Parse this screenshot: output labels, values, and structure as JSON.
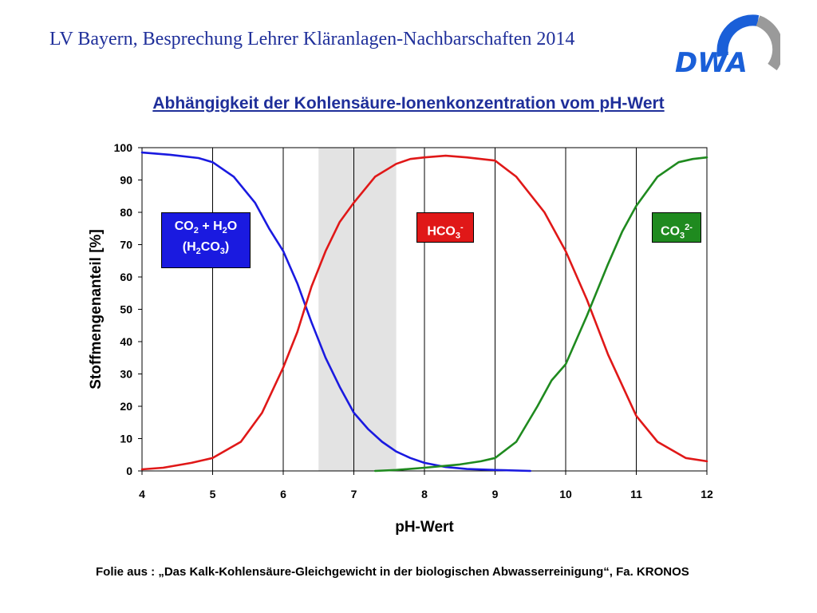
{
  "header": {
    "text": "LV Bayern, Besprechung Lehrer Kläranlagen-Nachbarschaften 2014"
  },
  "logo": {
    "text": "DWA"
  },
  "footer": {
    "text": "Folie aus : „Das Kalk-Kohlensäure-Gleichgewicht in der biologischen Abwasserreinigung“, Fa. KRONOS"
  },
  "colors": {
    "blue": "#1a1ae0",
    "red": "#e01818",
    "green": "#1f8a1f",
    "title": "#1f2f9a",
    "shade": "#e3e3e3"
  },
  "chart_data": {
    "type": "line",
    "title": "Abhängigkeit der Kohlensäure-Ionenkonzentration vom pH-Wert",
    "xlabel": "pH-Wert",
    "ylabel": "Stoffmengenanteil [%]",
    "xlim": [
      4,
      12
    ],
    "ylim": [
      0,
      100
    ],
    "xticks": [
      "4",
      "5",
      "6",
      "7",
      "8",
      "9",
      "10",
      "11",
      "12"
    ],
    "yticks": [
      "0",
      "10",
      "20",
      "30",
      "40",
      "50",
      "60",
      "70",
      "80",
      "90",
      "100"
    ],
    "grid": "vertical",
    "shaded_region": [
      6.5,
      7.6
    ],
    "series": [
      {
        "name": "CO2 + H2O (H2CO3)",
        "color": "#1a1ae0",
        "x": [
          4.0,
          4.4,
          4.8,
          5.0,
          5.3,
          5.6,
          5.8,
          6.0,
          6.2,
          6.4,
          6.6,
          6.8,
          7.0,
          7.2,
          7.4,
          7.6,
          7.8,
          8.0,
          8.3,
          8.6,
          9.0,
          9.5
        ],
        "y": [
          98.5,
          97.8,
          96.8,
          95.5,
          91,
          83,
          75,
          68,
          58,
          46,
          35,
          26,
          18,
          13,
          9,
          6,
          4,
          2.5,
          1.2,
          0.6,
          0.3,
          0
        ]
      },
      {
        "name": "HCO3-",
        "color": "#e01818",
        "x": [
          4.0,
          4.3,
          4.7,
          5.0,
          5.4,
          5.7,
          6.0,
          6.2,
          6.4,
          6.6,
          6.8,
          7.0,
          7.3,
          7.6,
          7.8,
          8.0,
          8.3,
          8.6,
          9.0,
          9.3,
          9.7,
          10.0,
          10.3,
          10.6,
          11.0,
          11.3,
          11.7,
          12.0
        ],
        "y": [
          0.5,
          1,
          2.5,
          4,
          9,
          18,
          32,
          43,
          57,
          68,
          77,
          83,
          91,
          95,
          96.5,
          97,
          97.5,
          97,
          96,
          91,
          80,
          68,
          53,
          36,
          17,
          9,
          4,
          3
        ]
      },
      {
        "name": "CO32-",
        "color": "#1f8a1f",
        "x": [
          7.3,
          7.6,
          8.0,
          8.5,
          8.8,
          9.0,
          9.3,
          9.6,
          9.8,
          10.0,
          10.3,
          10.6,
          10.8,
          11.0,
          11.3,
          11.6,
          11.8,
          12.0
        ],
        "y": [
          0,
          0.3,
          1,
          2,
          3,
          4,
          9,
          20,
          28,
          33,
          48,
          64,
          74,
          82,
          91,
          95.5,
          96.5,
          97
        ]
      }
    ]
  }
}
